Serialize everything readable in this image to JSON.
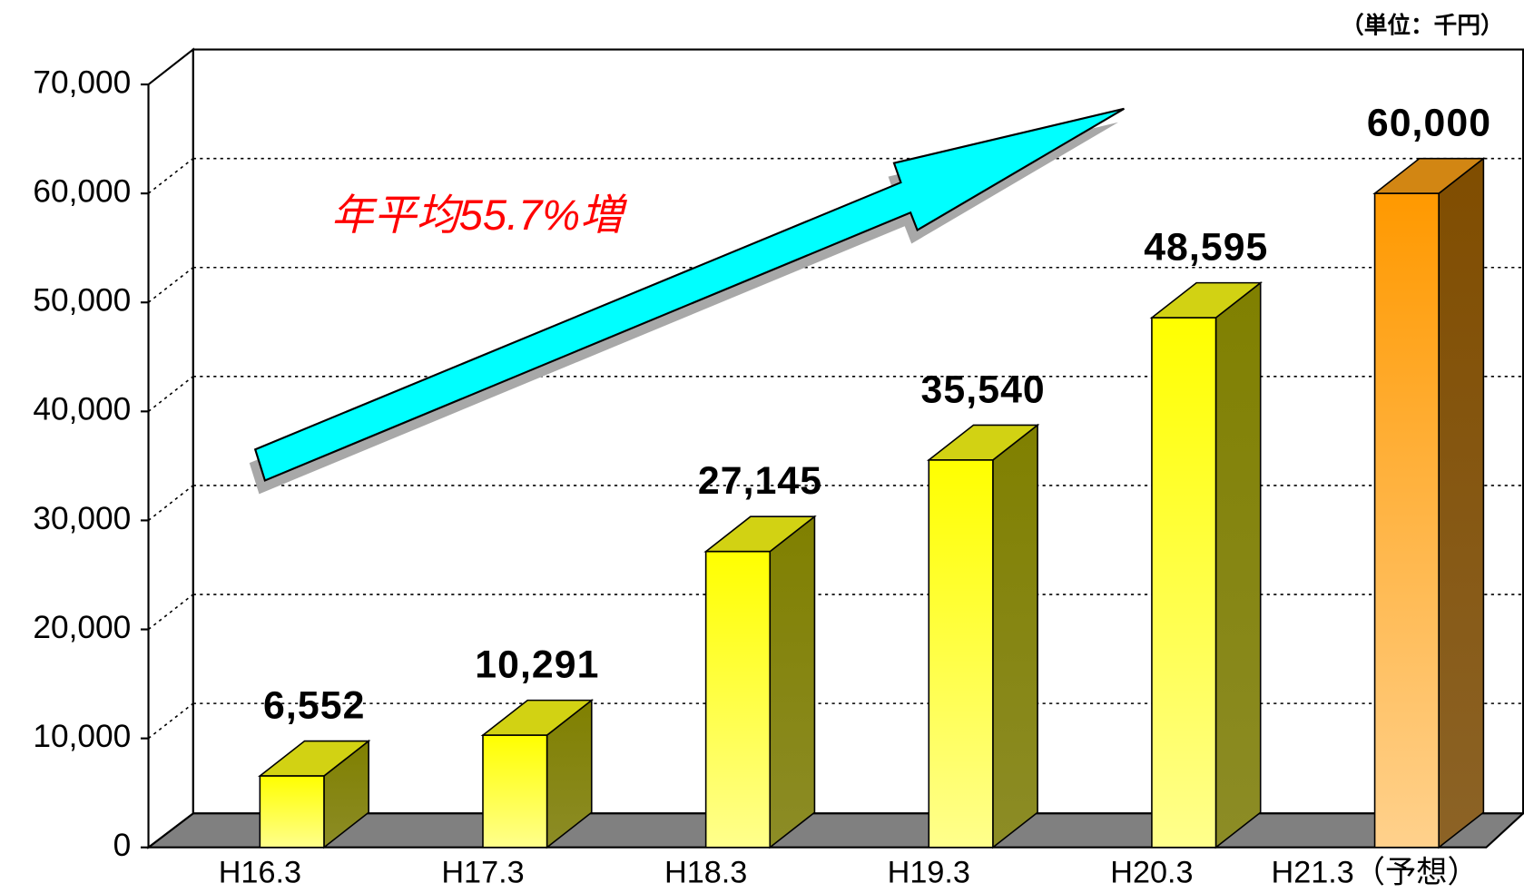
{
  "chart_data": {
    "type": "bar3d",
    "unit_label": "（単位：千円）",
    "annotation": "年平均55.7%増",
    "categories": [
      "H16.3",
      "H17.3",
      "H18.3",
      "H19.3",
      "H20.3",
      "H21.3（予想）"
    ],
    "values": [
      6552,
      10291,
      27145,
      35540,
      48595,
      60000
    ],
    "value_labels": [
      "6,552",
      "10,291",
      "27,145",
      "35,540",
      "48,595",
      "60,000"
    ],
    "colors": [
      "#ffff00",
      "#ffff00",
      "#ffff00",
      "#ffff00",
      "#ffff00",
      "#ff9900"
    ],
    "ylim": [
      0,
      70000
    ],
    "yticks": [
      0,
      {
        "value": 10000,
        "label": "10,000"
      },
      {
        "value": 20000,
        "label": "20,000"
      },
      {
        "value": 30000,
        "label": "30,000"
      },
      {
        "value": 40000,
        "label": "40,000"
      },
      {
        "value": 50000,
        "label": "50,000"
      },
      {
        "value": 60000,
        "label": "60,000"
      },
      {
        "value": 70000,
        "label": "70,000"
      }
    ],
    "grid": true
  }
}
